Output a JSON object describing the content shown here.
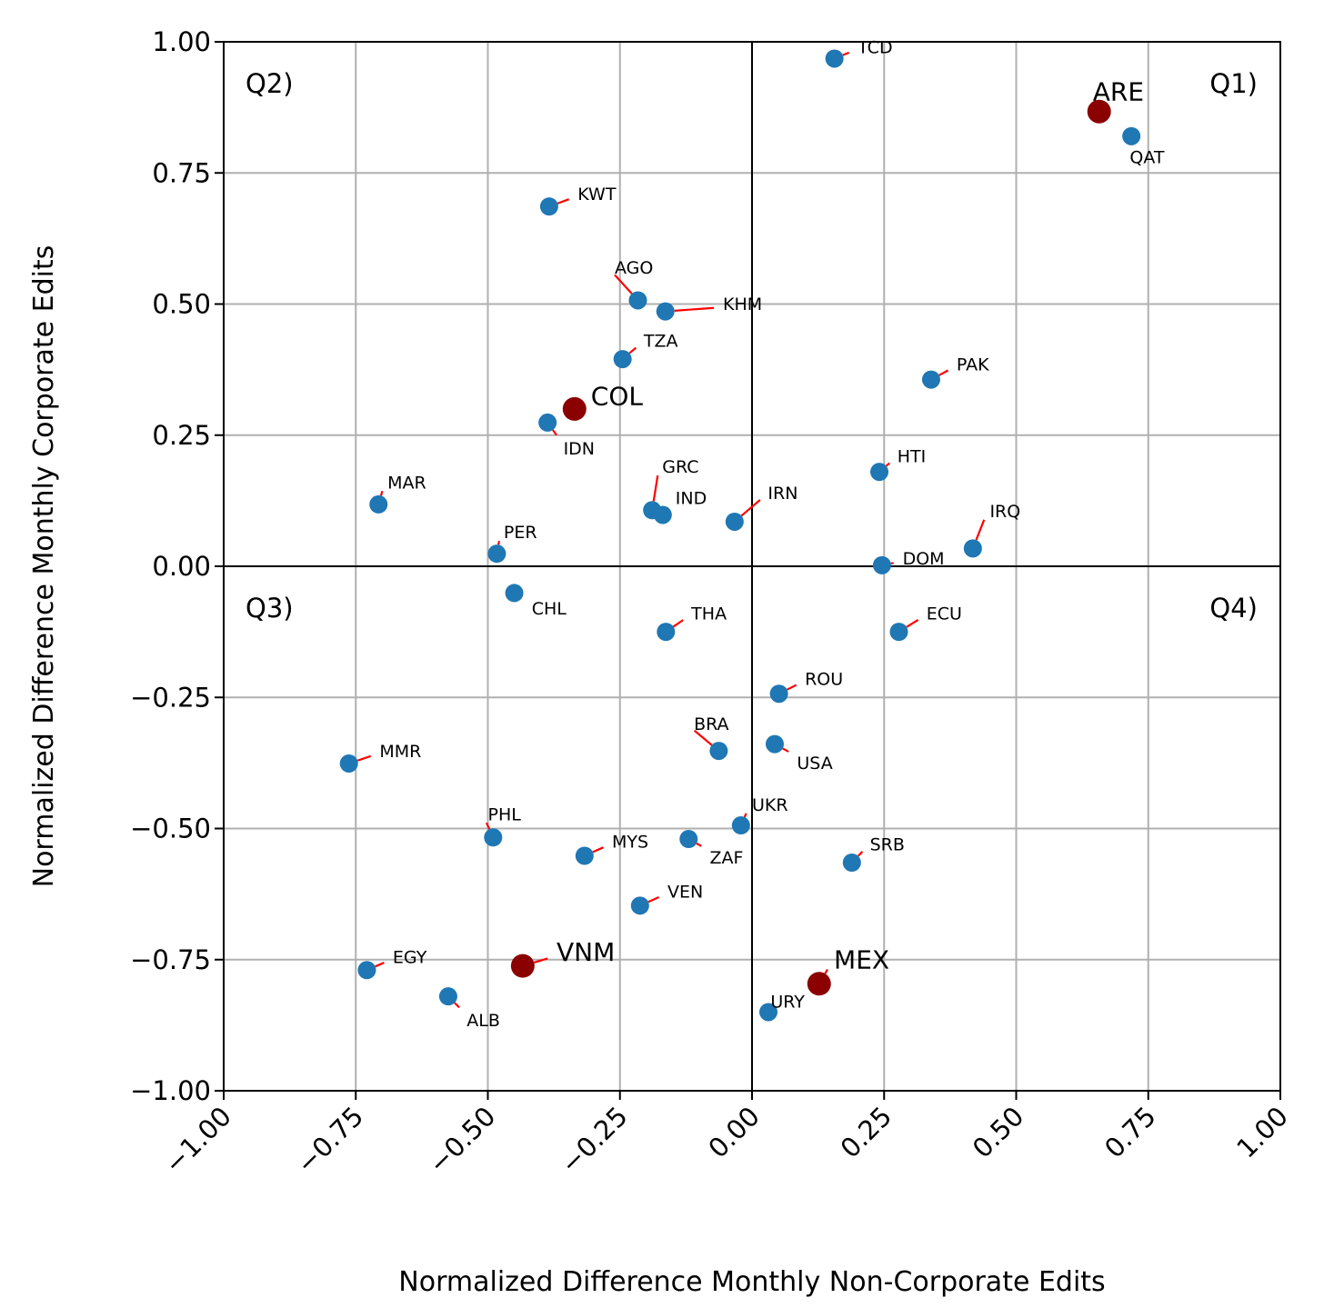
{
  "chart_data": {
    "type": "scatter",
    "xlabel": "Normalized Difference Monthly Non-Corporate Edits",
    "ylabel": "Normalized Difference Monthly Corporate Edits",
    "xlim": [
      -1.0,
      1.0
    ],
    "ylim": [
      -1.0,
      1.0
    ],
    "xticks": [
      "−1.00",
      "−0.75",
      "−0.50",
      "−0.25",
      "0.00",
      "0.25",
      "0.50",
      "0.75",
      "1.00"
    ],
    "yticks": [
      "1.00",
      "0.75",
      "0.50",
      "0.25",
      "0.00",
      "−0.25",
      "−0.50",
      "−0.75",
      "−1.00"
    ],
    "grid": true,
    "quadrant_labels": [
      "Q1)",
      "Q2)",
      "Q3)",
      "Q4)"
    ],
    "colors": {
      "point": "#1f77b4",
      "highlight": "#8b0000",
      "leader": "#ff0000",
      "grid": "#b0b0b0"
    },
    "points": [
      {
        "label": "TCD",
        "x": 0.156,
        "y": 0.968,
        "lx": 0.2,
        "ly": 0.99,
        "anchor": "start"
      },
      {
        "label": "ARE",
        "x": 0.657,
        "y": 0.867,
        "lx": 0.645,
        "ly": 0.905,
        "anchor": "start",
        "highlight": true
      },
      {
        "label": "QAT",
        "x": 0.718,
        "y": 0.82,
        "lx": 0.715,
        "ly": 0.78,
        "anchor": "start"
      },
      {
        "label": "KWT",
        "x": -0.384,
        "y": 0.686,
        "lx": -0.33,
        "ly": 0.71,
        "anchor": "start"
      },
      {
        "label": "AGO",
        "x": -0.216,
        "y": 0.507,
        "lx": -0.26,
        "ly": 0.57,
        "anchor": "start"
      },
      {
        "label": "KHM",
        "x": -0.164,
        "y": 0.486,
        "lx": -0.055,
        "ly": 0.5,
        "anchor": "start"
      },
      {
        "label": "TZA",
        "x": -0.245,
        "y": 0.395,
        "lx": -0.205,
        "ly": 0.43,
        "anchor": "start"
      },
      {
        "label": "PAK",
        "x": 0.339,
        "y": 0.356,
        "lx": 0.387,
        "ly": 0.385,
        "anchor": "start"
      },
      {
        "label": "COL",
        "x": -0.336,
        "y": 0.3,
        "lx": -0.305,
        "ly": 0.325,
        "anchor": "start",
        "highlight": true
      },
      {
        "label": "IDN",
        "x": -0.387,
        "y": 0.274,
        "lx": -0.357,
        "ly": 0.225,
        "anchor": "start"
      },
      {
        "label": "HTI",
        "x": 0.241,
        "y": 0.18,
        "lx": 0.275,
        "ly": 0.21,
        "anchor": "start"
      },
      {
        "label": "GRC",
        "x": -0.189,
        "y": 0.107,
        "lx": -0.17,
        "ly": 0.19,
        "anchor": "start"
      },
      {
        "label": "IND",
        "x": -0.169,
        "y": 0.098,
        "lx": -0.145,
        "ly": 0.13,
        "anchor": "start"
      },
      {
        "label": "MAR",
        "x": -0.707,
        "y": 0.118,
        "lx": -0.69,
        "ly": 0.16,
        "anchor": "start"
      },
      {
        "label": "IRN",
        "x": -0.033,
        "y": 0.085,
        "lx": 0.03,
        "ly": 0.14,
        "anchor": "start"
      },
      {
        "label": "IRQ",
        "x": 0.418,
        "y": 0.034,
        "lx": 0.45,
        "ly": 0.105,
        "anchor": "start"
      },
      {
        "label": "PER",
        "x": -0.483,
        "y": 0.024,
        "lx": -0.47,
        "ly": 0.065,
        "anchor": "start"
      },
      {
        "label": "DOM",
        "x": 0.246,
        "y": 0.002,
        "lx": 0.285,
        "ly": 0.015,
        "anchor": "start"
      },
      {
        "label": "CHL",
        "x": -0.45,
        "y": -0.051,
        "lx": -0.417,
        "ly": -0.08,
        "anchor": "start"
      },
      {
        "label": "THA",
        "x": -0.163,
        "y": -0.125,
        "lx": -0.115,
        "ly": -0.09,
        "anchor": "start"
      },
      {
        "label": "ECU",
        "x": 0.278,
        "y": -0.125,
        "lx": 0.33,
        "ly": -0.09,
        "anchor": "start"
      },
      {
        "label": "ROU",
        "x": 0.051,
        "y": -0.243,
        "lx": 0.1,
        "ly": -0.215,
        "anchor": "start"
      },
      {
        "label": "BRA",
        "x": -0.063,
        "y": -0.352,
        "lx": -0.11,
        "ly": -0.3,
        "anchor": "start"
      },
      {
        "label": "USA",
        "x": 0.043,
        "y": -0.339,
        "lx": 0.085,
        "ly": -0.375,
        "anchor": "start"
      },
      {
        "label": "MMR",
        "x": -0.763,
        "y": -0.376,
        "lx": -0.705,
        "ly": -0.352,
        "anchor": "start"
      },
      {
        "label": "UKR",
        "x": -0.021,
        "y": -0.494,
        "lx": 0.0,
        "ly": -0.455,
        "anchor": "start"
      },
      {
        "label": "PHL",
        "x": -0.49,
        "y": -0.517,
        "lx": -0.5,
        "ly": -0.473,
        "anchor": "start"
      },
      {
        "label": "MYS",
        "x": -0.317,
        "y": -0.552,
        "lx": -0.265,
        "ly": -0.525,
        "anchor": "start"
      },
      {
        "label": "ZAF",
        "x": -0.12,
        "y": -0.52,
        "lx": -0.08,
        "ly": -0.555,
        "anchor": "start"
      },
      {
        "label": "SRB",
        "x": 0.189,
        "y": -0.565,
        "lx": 0.223,
        "ly": -0.53,
        "anchor": "start"
      },
      {
        "label": "VEN",
        "x": -0.212,
        "y": -0.647,
        "lx": -0.16,
        "ly": -0.62,
        "anchor": "start"
      },
      {
        "label": "VNM",
        "x": -0.434,
        "y": -0.762,
        "lx": -0.37,
        "ly": -0.735,
        "anchor": "start",
        "highlight": true
      },
      {
        "label": "EGY",
        "x": -0.729,
        "y": -0.77,
        "lx": -0.68,
        "ly": -0.745,
        "anchor": "start"
      },
      {
        "label": "MEX",
        "x": 0.127,
        "y": -0.796,
        "lx": 0.155,
        "ly": -0.75,
        "anchor": "start",
        "highlight": true
      },
      {
        "label": "ALB",
        "x": -0.575,
        "y": -0.82,
        "lx": -0.54,
        "ly": -0.865,
        "anchor": "start"
      },
      {
        "label": "URY",
        "x": 0.031,
        "y": -0.85,
        "lx": 0.035,
        "ly": -0.83,
        "anchor": "start"
      }
    ]
  }
}
